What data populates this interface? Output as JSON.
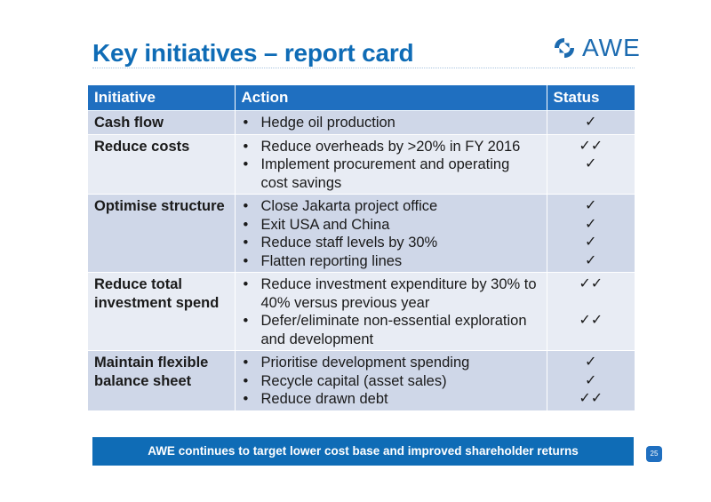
{
  "slide": {
    "title": "Key initiatives – report card",
    "logo_text": "AWE",
    "brand_color": "#0f6cb6",
    "check_color": "#3c8a14",
    "footer_banner": "AWE continues to target lower cost base and improved shareholder returns",
    "page_number": "25"
  },
  "table": {
    "headers": [
      "Initiative",
      "Action",
      "Status"
    ],
    "rows": [
      {
        "initiative": "Cash flow",
        "actions": [
          "Hedge oil production"
        ],
        "status": [
          "✓"
        ]
      },
      {
        "initiative": "Reduce costs",
        "actions": [
          "Reduce overheads by >20% in FY 2016",
          "Implement procurement and operating cost savings"
        ],
        "status": [
          "✓✓",
          "✓"
        ]
      },
      {
        "initiative": "Optimise structure",
        "actions": [
          "Close Jakarta project office",
          "Exit USA and China",
          "Reduce staff levels by 30%",
          "Flatten reporting lines"
        ],
        "status": [
          "✓",
          "✓",
          "✓",
          "✓"
        ]
      },
      {
        "initiative": "Reduce total investment spend",
        "actions": [
          "Reduce investment expenditure by 30% to 40% versus previous year",
          "Defer/eliminate non-essential exploration and development"
        ],
        "status": [
          "✓✓",
          "",
          "✓✓"
        ]
      },
      {
        "initiative": "Maintain flexible balance sheet",
        "actions": [
          "Prioritise development spending",
          "Recycle capital (asset sales)",
          "Reduce drawn debt"
        ],
        "status": [
          "✓",
          "✓",
          "✓✓"
        ]
      }
    ]
  }
}
